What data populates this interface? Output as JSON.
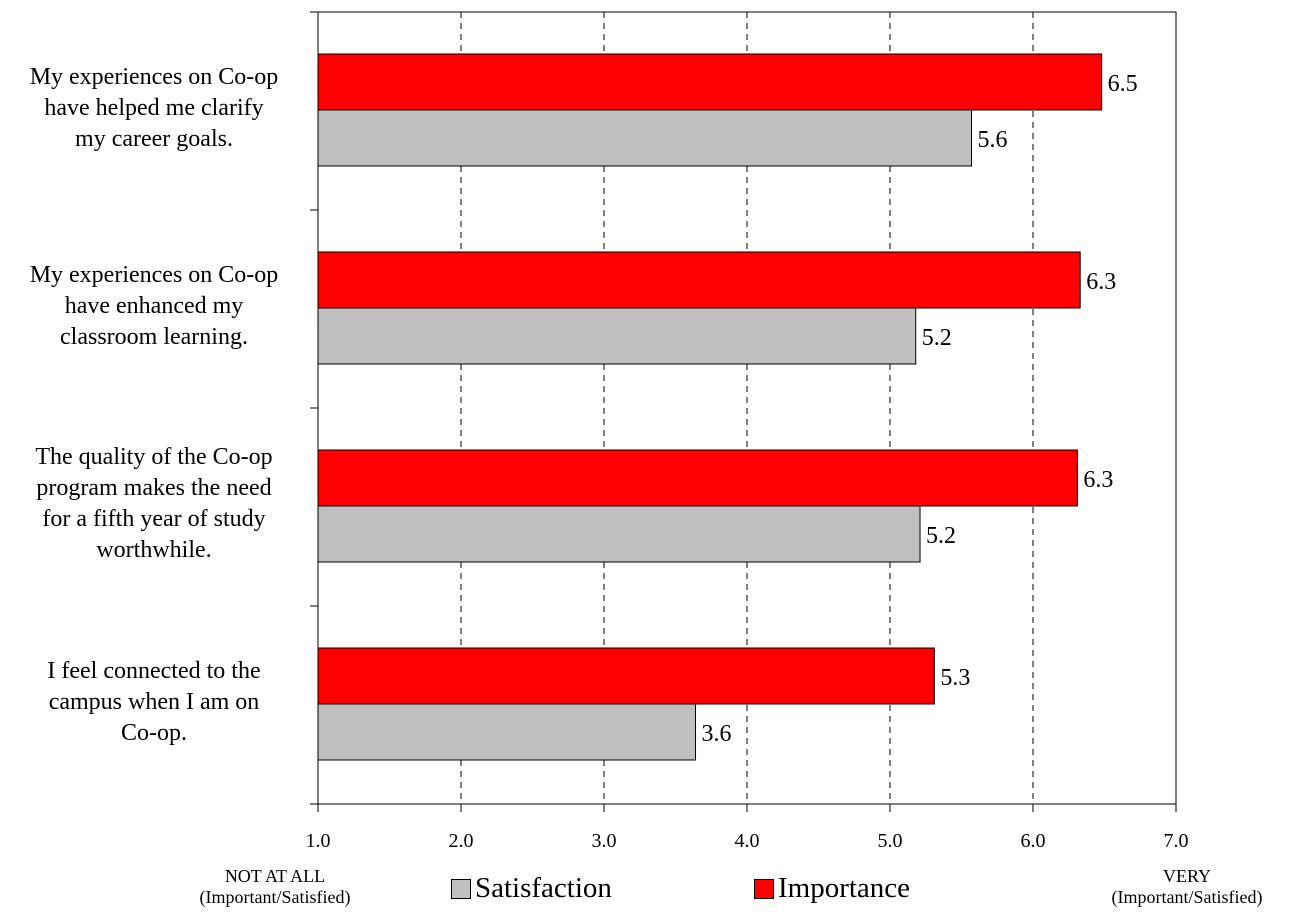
{
  "chart_data": {
    "type": "bar",
    "orientation": "horizontal",
    "categories": [
      "My experiences on Co-op have helped me clarify my career goals.",
      "My experiences on Co-op have enhanced my classroom learning.",
      "The quality of the Co-op program makes the need for a fifth year of study worthwhile.",
      "I feel connected to the campus when I am on Co-op."
    ],
    "category_lines": [
      [
        "My experiences on Co-op",
        "have helped me clarify",
        "my career goals."
      ],
      [
        "My experiences on Co-op",
        "have enhanced my",
        "classroom learning."
      ],
      [
        "The quality of the Co-op",
        "program makes the need",
        "for a fifth year of study",
        "worthwhile."
      ],
      [
        "I feel connected to the",
        "campus when I am on",
        "Co-op."
      ]
    ],
    "series": [
      {
        "name": "Importance",
        "color": "#ff0000",
        "values": [
          6.48,
          6.33,
          6.31,
          5.31
        ],
        "labels": [
          "6.5",
          "6.3",
          "6.3",
          "5.3"
        ]
      },
      {
        "name": "Satisfaction",
        "color": "#c0c0c0",
        "values": [
          5.57,
          5.18,
          5.21,
          3.64
        ],
        "labels": [
          "5.6",
          "5.2",
          "5.2",
          "3.6"
        ]
      }
    ],
    "xlim": [
      1.0,
      7.0
    ],
    "xticks": [
      1.0,
      2.0,
      3.0,
      4.0,
      5.0,
      6.0,
      7.0
    ],
    "xtick_labels": [
      "1.0",
      "2.0",
      "3.0",
      "4.0",
      "5.0",
      "6.0",
      "7.0"
    ],
    "grid": "vertical dashed",
    "legend_position": "bottom",
    "legend": [
      "Satisfaction",
      "Importance"
    ],
    "x_axis_notes": {
      "left": [
        "NOT AT ALL",
        "(Important/Satisfied)"
      ],
      "right": [
        "VERY",
        "(Important/Satisfied)"
      ]
    }
  }
}
